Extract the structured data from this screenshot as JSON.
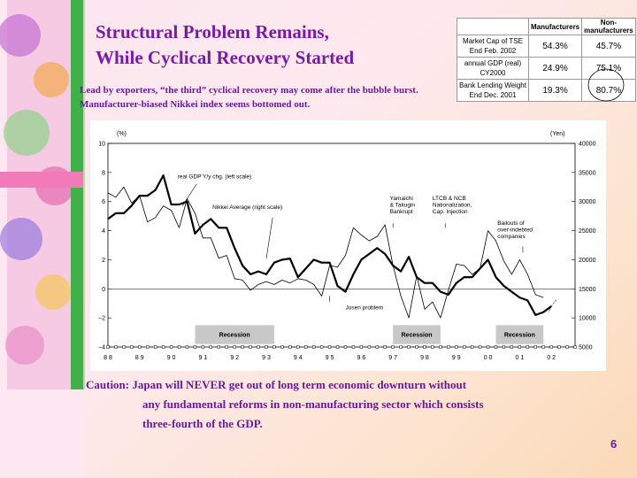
{
  "title_lines": [
    "Structural Problem Remains,",
    "While Cyclical Recovery Started"
  ],
  "subtitle_lines": [
    "Lead by exporters, “the third” cyclical recovery may come after the bubble burst.",
    "Manufacturer-biased Nikkei index seems bottomed out."
  ],
  "table": {
    "headers": [
      "",
      "Manufacturers",
      "Non-manufacturers"
    ],
    "rows": [
      {
        "label1": "Market Cap of TSE",
        "label2": "End Feb. 2002",
        "values": [
          "54.3%",
          "45.7%"
        ]
      },
      {
        "label1": "annual GDP (real)",
        "label2": "CY2000",
        "values": [
          "24.9%",
          "75.1%"
        ]
      },
      {
        "label1": "Bank Lending Weight",
        "label2": "End Dec. 2001",
        "values": [
          "19.3%",
          "80.7%"
        ]
      }
    ]
  },
  "chart_data": {
    "type": "line",
    "left_axis_unit": "(%)",
    "right_axis_unit": "(Yen)",
    "y_left_range": [
      -4,
      10
    ],
    "y_left_ticks": [
      "10",
      "8",
      "6",
      "4",
      "2",
      "0",
      "−2",
      "−4"
    ],
    "y_right_range": [
      5000,
      40000
    ],
    "y_right_ticks": [
      "40000",
      "35000",
      "30000",
      "25000",
      "20000",
      "15000",
      "10000",
      "5000"
    ],
    "x_range": [
      1988,
      2002.75
    ],
    "x_tick_labels": [
      "88",
      "89",
      "90",
      "91",
      "92",
      "93",
      "94",
      "95",
      "96",
      "97",
      "98",
      "99",
      "00",
      "01",
      "02"
    ],
    "series": [
      {
        "name": "real GDP Y/y chg. (left scale)",
        "axis": "left",
        "x": [
          1988,
          1988.25,
          1988.5,
          1988.75,
          1989,
          1989.25,
          1989.5,
          1989.75,
          1990,
          1990.25,
          1990.5,
          1990.75,
          1991,
          1991.25,
          1991.5,
          1991.75,
          1992,
          1992.25,
          1992.5,
          1992.75,
          1993,
          1993.25,
          1993.5,
          1993.75,
          1994,
          1994.25,
          1994.5,
          1994.75,
          1995,
          1995.25,
          1995.5,
          1995.75,
          1996,
          1996.25,
          1996.5,
          1996.75,
          1997,
          1997.25,
          1997.5,
          1997.75,
          1998,
          1998.25,
          1998.5,
          1998.75,
          1999,
          1999.25,
          1999.5,
          1999.75,
          2000,
          2000.25,
          2000.5,
          2000.75,
          2001,
          2001.25,
          2001.5,
          2001.75
        ],
        "values": [
          6.6,
          6.3,
          7.0,
          5.9,
          6.4,
          4.6,
          4.9,
          5.7,
          5.4,
          4.2,
          6.2,
          5.2,
          3.5,
          3.5,
          2.1,
          2.3,
          0.7,
          0.6,
          -0.1,
          0.3,
          0.5,
          0.3,
          0.6,
          0.4,
          0.7,
          0.6,
          0.3,
          -0.5,
          1.6,
          1.5,
          2.3,
          4.2,
          3.7,
          3.3,
          3.6,
          4.4,
          1.6,
          -0.5,
          -2.0,
          0.9,
          -1.4,
          -0.9,
          -2.0,
          -0.1,
          1.7,
          1.6,
          1.0,
          1.4,
          4.0,
          3.3,
          1.9,
          1.0,
          2.0,
          1.0,
          -0.4,
          -0.6
        ]
      },
      {
        "name": "Nikkei Average (right scale)",
        "axis": "right",
        "x": [
          1988,
          1988.25,
          1988.5,
          1988.75,
          1989,
          1989.25,
          1989.5,
          1989.75,
          1990,
          1990.25,
          1990.5,
          1990.75,
          1991,
          1991.25,
          1991.5,
          1991.75,
          1992,
          1992.25,
          1992.5,
          1992.75,
          1993,
          1993.25,
          1993.5,
          1993.75,
          1994,
          1994.25,
          1994.5,
          1994.75,
          1995,
          1995.25,
          1995.5,
          1995.75,
          1996,
          1996.25,
          1996.5,
          1996.75,
          1997,
          1997.25,
          1997.5,
          1997.75,
          1998,
          1998.25,
          1998.5,
          1998.75,
          1999,
          1999.25,
          1999.5,
          1999.75,
          2000,
          2000.25,
          2000.5,
          2000.75,
          2001,
          2001.25,
          2001.5,
          2001.75,
          2002
        ],
        "values": [
          27000,
          28000,
          28000,
          29300,
          31000,
          31000,
          32000,
          34500,
          29500,
          29500,
          30000,
          24500,
          26000,
          27000,
          25500,
          25500,
          22000,
          19000,
          17500,
          18000,
          17500,
          19500,
          20000,
          20200,
          17000,
          18500,
          20000,
          19500,
          19500,
          15500,
          14500,
          17500,
          20000,
          21000,
          22000,
          21000,
          19000,
          18000,
          20500,
          17000,
          16000,
          16000,
          14500,
          14000,
          16000,
          17000,
          17000,
          18500,
          20000,
          17000,
          15500,
          14500,
          13500,
          13000,
          10500,
          11000,
          12000
        ]
      }
    ],
    "recessions": [
      {
        "label": "Recession",
        "start": 1990.75,
        "end": 1993.25
      },
      {
        "label": "Recession",
        "start": 1997.0,
        "end": 1998.5
      },
      {
        "label": "Recession",
        "start": 2000.25,
        "end": 2001.75
      }
    ],
    "annotations": [
      {
        "lines": [
          "real GDP Y/y chg. (left scale)"
        ],
        "arrow": true
      },
      {
        "lines": [
          "Nikkei Average (right scale)"
        ],
        "arrow": true
      },
      {
        "lines": [
          "Jusen problem"
        ],
        "arrow": true
      },
      {
        "lines": [
          "Yamaichi",
          "& Takugin",
          "Bankrupt"
        ],
        "arrow": true
      },
      {
        "lines": [
          "LTCB & NCB",
          "Nationalization,",
          "Cap. Injection"
        ],
        "arrow": true
      },
      {
        "lines": [
          "Bailouts of",
          "over-indebted",
          "companies"
        ],
        "arrow": true
      },
      {
        "lines": [
          "?"
        ],
        "arrow": false
      }
    ]
  },
  "caution_lines": [
    "Caution: Japan will NEVER get out of long term economic downturn without",
    "any fundamental reforms in non-manufacturing sector which consists",
    "three-fourth of the GDP."
  ],
  "page_number": "6",
  "colors": {
    "title": "#7a1aa6",
    "series_gdp": "#000000",
    "series_nikkei": "#000000",
    "recession": "#c8c8c8"
  }
}
